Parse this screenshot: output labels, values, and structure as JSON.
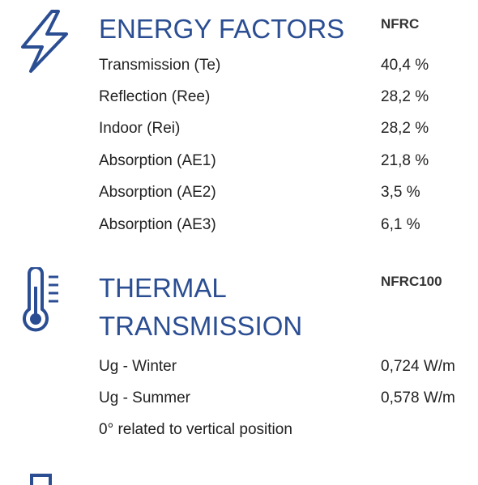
{
  "sections": [
    {
      "title": "ENERGY FACTORS",
      "standard": "NFRC",
      "rows": [
        {
          "label": "Transmission (Te)",
          "value": "40,4 %"
        },
        {
          "label": "Reflection (Ree)",
          "value": "28,2 %"
        },
        {
          "label": "Indoor (Rei)",
          "value": "28,2 %"
        },
        {
          "label": "Absorption (AE1)",
          "value": "21,8 %"
        },
        {
          "label": "Absorption (AE2)",
          "value": "3,5 %"
        },
        {
          "label": "Absorption (AE3)",
          "value": "6,1 %"
        }
      ]
    },
    {
      "title": "THERMAL TRANSMISSION",
      "standard": "NFRC100",
      "rows": [
        {
          "label": "Ug - Winter",
          "value": "0,724 W/m"
        },
        {
          "label": "Ug - Summer",
          "value": "0,578 W/m"
        }
      ],
      "note": "0° related to vertical position"
    }
  ]
}
